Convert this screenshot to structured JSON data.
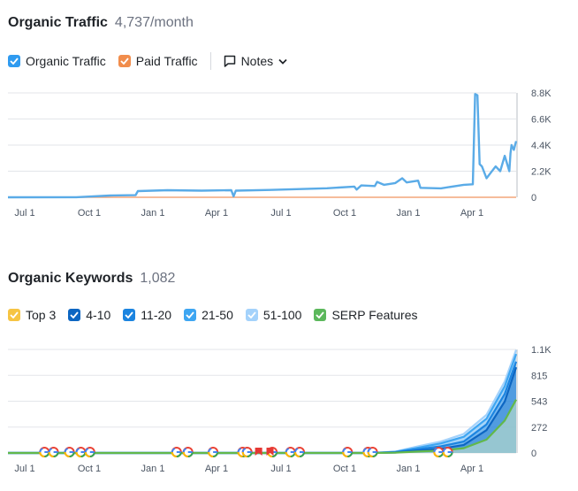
{
  "traffic": {
    "title": "Organic Traffic",
    "value": "4,737/month",
    "legend": [
      {
        "label": "Organic Traffic",
        "color": "#2f9bf0",
        "checked": true
      },
      {
        "label": "Paid Traffic",
        "color": "#f18d4c",
        "checked": true
      }
    ],
    "notes_label": "Notes"
  },
  "keywords": {
    "title": "Organic Keywords",
    "value": "1,082",
    "legend": [
      {
        "label": "Top 3",
        "color": "#f6c443",
        "checked": true
      },
      {
        "label": "4-10",
        "color": "#0d66c2",
        "checked": true
      },
      {
        "label": "11-20",
        "color": "#1b84e0",
        "checked": true
      },
      {
        "label": "21-50",
        "color": "#3ea6f2",
        "checked": true
      },
      {
        "label": "51-100",
        "color": "#a4d2fb",
        "checked": true
      },
      {
        "label": "SERP Features",
        "color": "#5cb85c",
        "checked": true
      }
    ]
  },
  "chart_data": [
    {
      "type": "line",
      "title": "Organic Traffic",
      "x_ticks": [
        "Jul 1",
        "Oct 1",
        "Jan 1",
        "Apr 1",
        "Jul 1",
        "Oct 1",
        "Jan 1",
        "Apr 1"
      ],
      "y_ticks": [
        "8.8K",
        "6.6K",
        "4.4K",
        "2.2K",
        "0"
      ],
      "ylim": [
        0,
        8800
      ],
      "xlim": [
        0,
        22.3
      ],
      "grid": true,
      "series": [
        {
          "name": "Organic Traffic",
          "color": "#5aabe7",
          "points": [
            [
              0,
              0
            ],
            [
              3,
              10
            ],
            [
              4.5,
              150
            ],
            [
              5.6,
              180
            ],
            [
              5.7,
              520
            ],
            [
              7,
              600
            ],
            [
              8.5,
              560
            ],
            [
              9.8,
              600
            ],
            [
              9.9,
              80
            ],
            [
              10,
              560
            ],
            [
              11.5,
              620
            ],
            [
              13,
              700
            ],
            [
              14,
              760
            ],
            [
              15.2,
              900
            ],
            [
              15.3,
              650
            ],
            [
              15.5,
              1000
            ],
            [
              16.1,
              950
            ],
            [
              16.2,
              1300
            ],
            [
              16.5,
              1050
            ],
            [
              17,
              1200
            ],
            [
              17.3,
              1600
            ],
            [
              17.5,
              1250
            ],
            [
              18,
              1400
            ],
            [
              18.1,
              800
            ],
            [
              19,
              750
            ],
            [
              20,
              1050
            ],
            [
              20.4,
              1100
            ],
            [
              20.5,
              8700
            ],
            [
              20.6,
              8600
            ],
            [
              20.7,
              2800
            ],
            [
              20.8,
              2600
            ],
            [
              21.0,
              1600
            ],
            [
              21.2,
              2100
            ],
            [
              21.4,
              2600
            ],
            [
              21.6,
              2200
            ],
            [
              21.8,
              3500
            ],
            [
              22.0,
              2200
            ],
            [
              22.05,
              3700
            ],
            [
              22.1,
              4400
            ],
            [
              22.2,
              4000
            ],
            [
              22.3,
              4737
            ]
          ]
        },
        {
          "name": "Paid Traffic",
          "color": "#f4a57a",
          "points": [
            [
              0,
              0
            ],
            [
              22.3,
              0
            ]
          ]
        }
      ]
    },
    {
      "type": "area",
      "title": "Organic Keywords",
      "x_ticks": [
        "Jul 1",
        "Oct 1",
        "Jan 1",
        "Apr 1",
        "Jul 1",
        "Oct 1",
        "Jan 1",
        "Apr 1"
      ],
      "y_ticks": [
        "1.1K",
        "815",
        "543",
        "272",
        "0"
      ],
      "ylim": [
        0,
        1087
      ],
      "xlim": [
        0,
        22.3
      ],
      "grid": true,
      "series": [
        {
          "name": "51-100",
          "color": "#a4d2fb",
          "points": [
            [
              0,
              0
            ],
            [
              16,
              0
            ],
            [
              17,
              15
            ],
            [
              18,
              70
            ],
            [
              19,
              120
            ],
            [
              20,
              200
            ],
            [
              21,
              400
            ],
            [
              21.8,
              750
            ],
            [
              22.3,
              1082
            ]
          ]
        },
        {
          "name": "21-50",
          "color": "#3ea6f2",
          "points": [
            [
              0,
              0
            ],
            [
              16,
              0
            ],
            [
              17,
              12
            ],
            [
              18,
              55
            ],
            [
              19,
              100
            ],
            [
              20,
              170
            ],
            [
              21,
              360
            ],
            [
              21.8,
              700
            ],
            [
              22.3,
              1040
            ]
          ]
        },
        {
          "name": "11-20",
          "color": "#1b84e0",
          "points": [
            [
              0,
              0
            ],
            [
              16,
              0
            ],
            [
              17,
              8
            ],
            [
              18,
              40
            ],
            [
              19,
              70
            ],
            [
              20,
              120
            ],
            [
              21,
              300
            ],
            [
              21.8,
              620
            ],
            [
              22.3,
              960
            ]
          ]
        },
        {
          "name": "4-10",
          "color": "#0d66c2",
          "points": [
            [
              0,
              0
            ],
            [
              16,
              0
            ],
            [
              17,
              5
            ],
            [
              18,
              25
            ],
            [
              19,
              45
            ],
            [
              20,
              85
            ],
            [
              21,
              240
            ],
            [
              21.8,
              540
            ],
            [
              22.3,
              900
            ]
          ]
        },
        {
          "name": "SERP Features",
          "color": "#62b84a",
          "points": [
            [
              0,
              0
            ],
            [
              16,
              0
            ],
            [
              17,
              3
            ],
            [
              18,
              15
            ],
            [
              19,
              25
            ],
            [
              20,
              50
            ],
            [
              21,
              140
            ],
            [
              21.8,
              340
            ],
            [
              22.3,
              560
            ]
          ]
        }
      ],
      "serp_markers_x": [
        1.6,
        2.0,
        2.7,
        3.2,
        3.6,
        7.4,
        7.9,
        9.0,
        10.3,
        10.5,
        11.6,
        12.4,
        12.8,
        14.9,
        15.8,
        16.0,
        18.9,
        19.3
      ],
      "serp_markers_flags_x": [
        11.0,
        11.5
      ]
    }
  ]
}
